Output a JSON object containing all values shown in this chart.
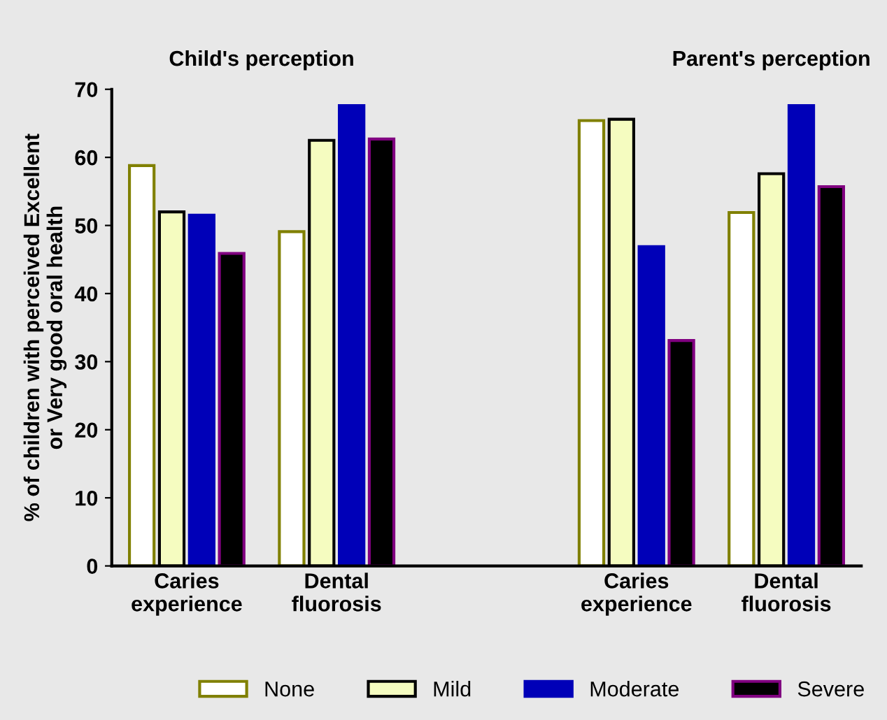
{
  "chart_data": {
    "type": "bar",
    "ylabel": "% of children with perceived Excellent\nor Very good oral health",
    "annotations": [
      "Child's perception",
      "Parent's perception"
    ],
    "categories": [
      "Caries\nexperience",
      "Dental\nfluorosis",
      null,
      "Caries\nexperience",
      "Dental\nfluorosis"
    ],
    "series": [
      {
        "name": "None",
        "color": "#ffffff",
        "values": [
          58.8,
          49.1,
          null,
          65.4,
          51.9
        ]
      },
      {
        "name": "Mild",
        "color": "#f5fcc0",
        "values": [
          52.0,
          62.5,
          null,
          65.6,
          57.6
        ]
      },
      {
        "name": "Moderate",
        "color": "#0000b8",
        "values": [
          51.5,
          67.6,
          null,
          46.9,
          67.6
        ]
      },
      {
        "name": "Severe",
        "color": "#000000",
        "values": [
          45.9,
          62.7,
          null,
          33.1,
          55.7
        ]
      }
    ],
    "ylim": [
      0,
      70
    ],
    "yticks": [
      0,
      10,
      20,
      30,
      40,
      50,
      60,
      70
    ],
    "grid": false,
    "legend": "bottom"
  }
}
